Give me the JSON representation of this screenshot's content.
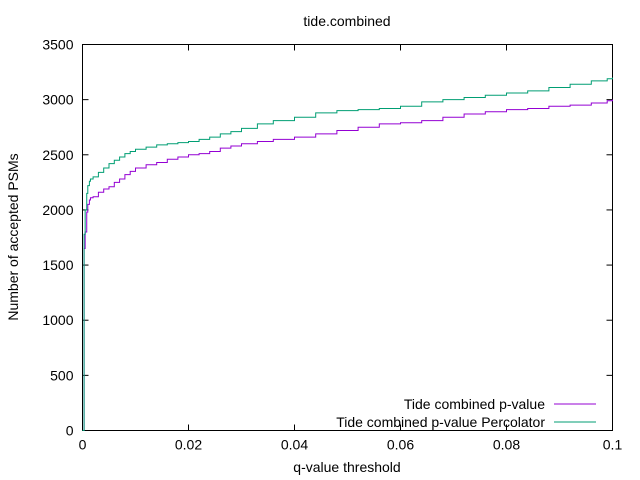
{
  "chart_data": {
    "type": "line",
    "title": "tide.combined",
    "xlabel": "q-value threshold",
    "ylabel": "Number of accepted PSMs",
    "xlim": [
      0,
      0.1
    ],
    "ylim": [
      0,
      3500
    ],
    "x_ticks": [
      0,
      0.02,
      0.04,
      0.06,
      0.08,
      0.1
    ],
    "x_tick_labels": [
      "0",
      "0.02",
      "0.04",
      "0.06",
      "0.08",
      "0.1"
    ],
    "y_ticks": [
      0,
      500,
      1000,
      1500,
      2000,
      2500,
      3000,
      3500
    ],
    "y_tick_labels": [
      "0",
      "500",
      "1000",
      "1500",
      "2000",
      "2500",
      "3000",
      "3500"
    ],
    "grid": false,
    "legend_position": "bottom-right",
    "series": [
      {
        "name": "Tide combined p-value",
        "color": "#9400d3",
        "x": [
          0,
          0.0003,
          0.0005,
          0.0008,
          0.001,
          0.0013,
          0.0015,
          0.002,
          0.003,
          0.004,
          0.005,
          0.006,
          0.007,
          0.008,
          0.009,
          0.01,
          0.012,
          0.014,
          0.016,
          0.018,
          0.02,
          0.022,
          0.024,
          0.026,
          0.028,
          0.03,
          0.033,
          0.036,
          0.04,
          0.044,
          0.048,
          0.052,
          0.056,
          0.06,
          0.064,
          0.068,
          0.072,
          0.076,
          0.08,
          0.084,
          0.088,
          0.092,
          0.096,
          0.099,
          0.1
        ],
        "y": [
          0,
          1650,
          1800,
          1980,
          2050,
          2090,
          2110,
          2120,
          2160,
          2190,
          2210,
          2250,
          2280,
          2320,
          2350,
          2380,
          2410,
          2430,
          2460,
          2480,
          2500,
          2510,
          2530,
          2560,
          2580,
          2600,
          2620,
          2640,
          2660,
          2690,
          2720,
          2750,
          2780,
          2790,
          2810,
          2840,
          2870,
          2890,
          2910,
          2920,
          2940,
          2950,
          2970,
          2990,
          3000
        ]
      },
      {
        "name": "Tide combined p-value Percolator",
        "color": "#009e73",
        "x": [
          0,
          0.0003,
          0.0005,
          0.0008,
          0.001,
          0.0013,
          0.0015,
          0.002,
          0.003,
          0.004,
          0.005,
          0.006,
          0.007,
          0.008,
          0.009,
          0.01,
          0.012,
          0.014,
          0.016,
          0.018,
          0.02,
          0.022,
          0.024,
          0.026,
          0.028,
          0.03,
          0.033,
          0.036,
          0.04,
          0.044,
          0.048,
          0.052,
          0.056,
          0.06,
          0.064,
          0.068,
          0.072,
          0.076,
          0.08,
          0.084,
          0.088,
          0.092,
          0.096,
          0.099,
          0.1
        ],
        "y": [
          0,
          1780,
          2000,
          2150,
          2220,
          2260,
          2280,
          2300,
          2340,
          2380,
          2420,
          2450,
          2480,
          2510,
          2530,
          2550,
          2570,
          2590,
          2600,
          2610,
          2620,
          2640,
          2660,
          2690,
          2710,
          2740,
          2780,
          2810,
          2840,
          2880,
          2900,
          2910,
          2920,
          2940,
          2980,
          3000,
          3020,
          3040,
          3060,
          3080,
          3110,
          3140,
          3170,
          3190,
          3200
        ]
      }
    ]
  }
}
